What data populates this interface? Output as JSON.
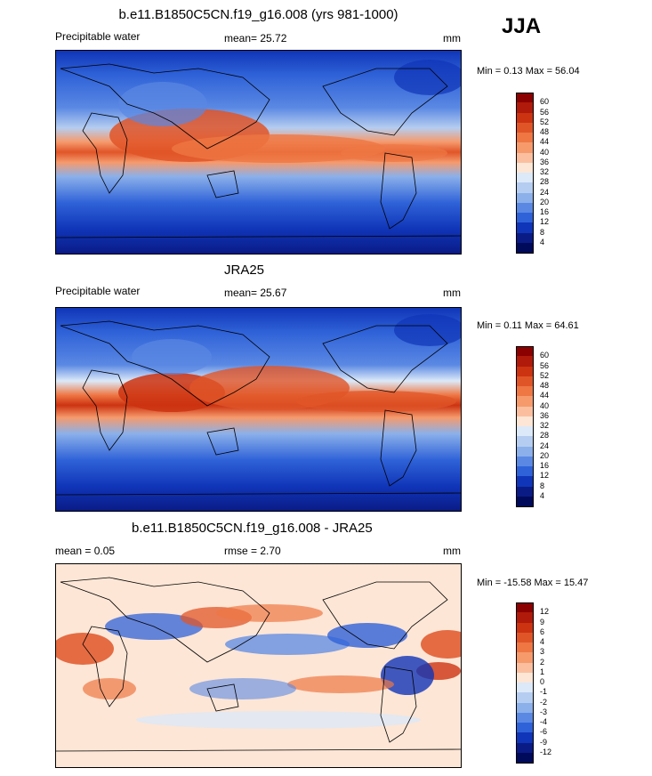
{
  "season": "JJA",
  "panels": [
    {
      "title": "b.e11.B1850C5CN.f19_g16.008 (yrs 981-1000)",
      "left_label": "Precipitable water",
      "center_label": "mean=  25.72",
      "units": "mm",
      "stats": "Min =   0.13 Max =  56.04",
      "levels": [
        "60",
        "56",
        "52",
        "48",
        "44",
        "40",
        "36",
        "32",
        "28",
        "24",
        "20",
        "16",
        "12",
        "8",
        "4"
      ],
      "colors": [
        "#8b0000",
        "#b01a0a",
        "#cc3311",
        "#e05528",
        "#ee7744",
        "#f69a6c",
        "#fbbfa0",
        "#fde6d6",
        "#dce9f8",
        "#b5cdf0",
        "#8bb0ea",
        "#5a88e3",
        "#2f62d8",
        "#1035b8",
        "#0a1b86",
        "#000a5a"
      ]
    },
    {
      "title": "JRA25",
      "left_label": "Precipitable water",
      "center_label": "mean=  25.67",
      "units": "mm",
      "stats": "Min =   0.11 Max =  64.61",
      "levels": [
        "60",
        "56",
        "52",
        "48",
        "44",
        "40",
        "36",
        "32",
        "28",
        "24",
        "20",
        "16",
        "12",
        "8",
        "4"
      ],
      "colors": [
        "#8b0000",
        "#b01a0a",
        "#cc3311",
        "#e05528",
        "#ee7744",
        "#f69a6c",
        "#fbbfa0",
        "#fde6d6",
        "#dce9f8",
        "#b5cdf0",
        "#8bb0ea",
        "#5a88e3",
        "#2f62d8",
        "#1035b8",
        "#0a1b86",
        "#000a5a"
      ]
    },
    {
      "title": "b.e11.B1850C5CN.f19_g16.008 - JRA25",
      "left_label": "mean =   0.05",
      "center_label": "rmse =   2.70",
      "units": "mm",
      "stats": "Min = -15.58 Max =  15.47",
      "levels": [
        "12",
        "9",
        "6",
        "4",
        "3",
        "2",
        "1",
        "0",
        "-1",
        "-2",
        "-3",
        "-4",
        "-6",
        "-9",
        "-12"
      ],
      "colors": [
        "#8b0000",
        "#b01a0a",
        "#cc3311",
        "#e05528",
        "#ee7744",
        "#f69a6c",
        "#fbbfa0",
        "#fde6d6",
        "#dce9f8",
        "#b5cdf0",
        "#8bb0ea",
        "#5a88e3",
        "#2f62d8",
        "#1035b8",
        "#0a1b86",
        "#000a5a"
      ]
    }
  ]
}
